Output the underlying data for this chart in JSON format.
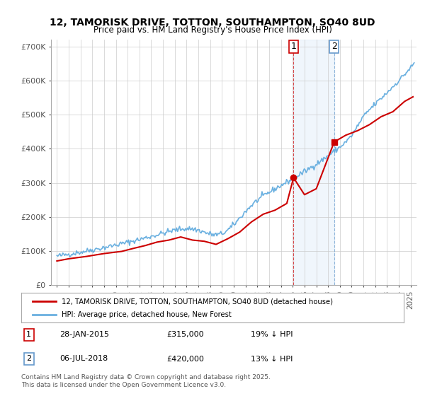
{
  "title": "12, TAMORISK DRIVE, TOTTON, SOUTHAMPTON, SO40 8UD",
  "subtitle": "Price paid vs. HM Land Registry's House Price Index (HPI)",
  "ylabel_values": [
    "£0",
    "£100K",
    "£200K",
    "£300K",
    "£400K",
    "£500K",
    "£600K",
    "£700K"
  ],
  "ytick_values": [
    0,
    100000,
    200000,
    300000,
    400000,
    500000,
    600000,
    700000
  ],
  "ylim": [
    0,
    720000
  ],
  "xlim_start": 1994.5,
  "xlim_end": 2025.5,
  "hpi_color": "#6ab0e0",
  "price_color": "#cc0000",
  "marker1_date": 2015.07,
  "marker2_date": 2018.52,
  "marker1_price": 315000,
  "marker2_price": 420000,
  "annotation1": "1   28-JAN-2015      £315,000        19% ↓ HPI",
  "annotation2": "2   06-JUL-2018      £420,000        13% ↓ HPI",
  "legend_line1": "12, TAMORISK DRIVE, TOTTON, SOUTHAMPTON, SO40 8UD (detached house)",
  "legend_line2": "HPI: Average price, detached house, New Forest",
  "footer": "Contains HM Land Registry data © Crown copyright and database right 2025.\nThis data is licensed under the Open Government Licence v3.0.",
  "background_color": "#ffffff",
  "grid_color": "#cccccc",
  "shade_color": "#d6e8f7"
}
